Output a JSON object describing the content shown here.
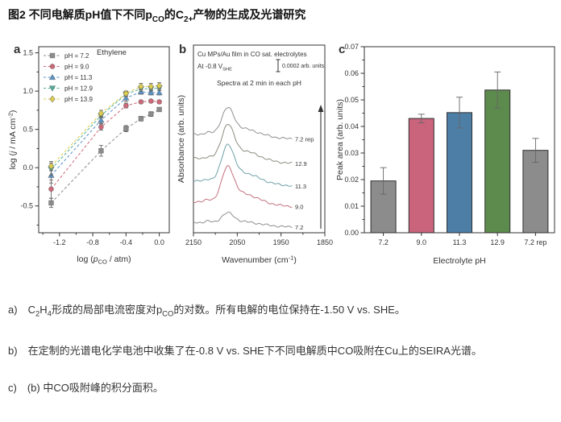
{
  "title": {
    "p1": "图2 不同电解质pH值下不同p",
    "s1": "CO",
    "p2": "的C",
    "s2": "2+",
    "p3": "产物的生成及光谱研究"
  },
  "captions": {
    "a": {
      "label": "a)",
      "p1": "C",
      "s1": "2",
      "p2": "H",
      "s2": "4",
      "p3": "形成的局部电流密度对p",
      "s3": "CO",
      "p4": "的对数。所有电解的电位保持在-1.50 V vs. SHE。"
    },
    "b": {
      "label": "b)",
      "text": "在定制的光谱电化学电池中收集了在-0.8 V vs. SHE下不同电解质中CO吸附在Cu上的SEIRA光谱。"
    },
    "c": {
      "label": "c)",
      "text": "(b) 中CO吸附峰的积分面积。"
    }
  },
  "chart_data": [
    {
      "panel": "a",
      "type": "line",
      "title": "Ethylene",
      "x": [
        -1.3,
        -0.7,
        -0.4,
        -0.22,
        -0.1,
        0.0
      ],
      "series": [
        {
          "name": "pH = 7.2",
          "color": "#8c8c8c",
          "marker": "square",
          "values": [
            -0.46,
            0.22,
            0.51,
            0.64,
            0.7,
            0.76
          ],
          "errors": [
            0.06,
            0.07,
            0.04,
            0.03,
            0.03,
            0.02
          ]
        },
        {
          "name": "pH = 9.0",
          "color": "#cd6878",
          "marker": "circle",
          "values": [
            -0.28,
            0.53,
            0.81,
            0.86,
            0.87,
            0.86
          ],
          "errors": [
            0.12,
            0.04,
            0.03,
            0.02,
            0.02,
            0.02
          ]
        },
        {
          "name": "pH = 11.3",
          "color": "#5b93c8",
          "marker": "triangle-up",
          "values": [
            -0.1,
            0.62,
            0.91,
            0.99,
            0.98,
            0.98
          ],
          "errors": [
            0.1,
            0.04,
            0.05,
            0.03,
            0.03,
            0.03
          ]
        },
        {
          "name": "pH = 12.9",
          "color": "#4fae9b",
          "marker": "triangle-down",
          "values": [
            -0.02,
            0.68,
            0.96,
            1.03,
            1.03,
            1.04
          ],
          "errors": [
            0.08,
            0.03,
            0.03,
            0.03,
            0.03,
            0.03
          ]
        },
        {
          "name": "pH = 13.9",
          "color": "#ddcc4e",
          "marker": "diamond",
          "values": [
            0.02,
            0.71,
            0.97,
            1.06,
            1.06,
            1.07
          ],
          "errors": [
            0.06,
            0.04,
            0.03,
            0.04,
            0.04,
            0.04
          ]
        }
      ],
      "xlim": [
        -1.45,
        0.12
      ],
      "ylim": [
        -0.85,
        1.58
      ],
      "xticks": [
        -1.2,
        -0.8,
        -0.4,
        0.0
      ],
      "xtick_labels": [
        "-1.2",
        "-0.8",
        "-0.4",
        "0.0"
      ],
      "xticks_minor": [
        -1.4,
        -1.0,
        -0.6,
        -0.2
      ],
      "yticks": [
        -0.5,
        0.0,
        0.5,
        1.0,
        1.5
      ],
      "ytick_labels": [
        "-0.5",
        "0.0",
        "0.5",
        "1.0",
        "1.5"
      ],
      "yticks_minor": [
        -0.75,
        -0.25,
        0.25,
        0.75,
        1.25
      ],
      "xlabel_segments": [
        {
          "t": "log ("
        },
        {
          "t": "p",
          "italic": true
        },
        {
          "t": "CO",
          "sub": true
        },
        {
          "t": " / atm)"
        }
      ],
      "ylabel_segments": [
        {
          "t": "log ("
        },
        {
          "t": "j",
          "italic": true
        },
        {
          "t": " / mA cm"
        },
        {
          "t": "-2",
          "sup": true
        },
        {
          "t": ")"
        }
      ],
      "legend_position": "top-left",
      "grid": false
    },
    {
      "panel": "b",
      "type": "line-spectra",
      "annotations": {
        "line1": "Cu MPs/Au film in CO sat. electrolytes",
        "line2_segments": [
          {
            "t": "At -0.8 V"
          },
          {
            "t": "SHE",
            "sub": true
          }
        ],
        "scalebar_label": "0.0002 arb. units",
        "line3": "Spectra at 2 min in each pH"
      },
      "xlim": [
        2150,
        1850
      ],
      "xticks": [
        2150,
        2050,
        1950,
        1850
      ],
      "xtick_labels": [
        "2150",
        "2050",
        "1950",
        "1850"
      ],
      "xticks_minor": [
        2100,
        2000,
        1900
      ],
      "xlabel_segments": [
        {
          "t": "Wavenumber (cm"
        },
        {
          "t": "-1",
          "sup": true
        },
        {
          "t": ")"
        }
      ],
      "ylabel_segments": [
        {
          "t": "Absorbance (arb. units)"
        }
      ],
      "peak_center": 2072,
      "curve_range": [
        2150,
        1925
      ],
      "spectra": [
        {
          "label": "7.2",
          "color": "#8f8f8f",
          "baseline": 0.97,
          "amplitude": 0.29
        },
        {
          "label": "9.0",
          "color": "#c4717f",
          "baseline": 0.86,
          "amplitude": 0.96
        },
        {
          "label": "11.3",
          "color": "#6fa0a8",
          "baseline": 0.75,
          "amplitude": 1.0
        },
        {
          "label": "12.9",
          "color": "#8d8d80",
          "baseline": 0.63,
          "amplitude": 0.94
        },
        {
          "label": "7.2 rep",
          "color": "#8f8f8f",
          "baseline": 0.5,
          "amplitude": 0.73
        }
      ],
      "arrow": "up-right-side",
      "grid": false
    },
    {
      "panel": "c",
      "type": "bar",
      "categories": [
        "7.2",
        "9.0",
        "11.3",
        "12.9",
        "7.2 rep"
      ],
      "values": [
        0.0195,
        0.043,
        0.0452,
        0.0537,
        0.031
      ],
      "errors": [
        0.005,
        0.0016,
        0.0058,
        0.0068,
        0.0045
      ],
      "colors": [
        "#8c8c8c",
        "#c9647c",
        "#4d7ea6",
        "#5d8a4d",
        "#8c8c8c"
      ],
      "ylim": [
        0,
        0.07
      ],
      "yticks": [
        0,
        0.01,
        0.02,
        0.03,
        0.04,
        0.05,
        0.06,
        0.07
      ],
      "ytick_labels": [
        "0.00",
        "0.01",
        "0.02",
        "0.03",
        "0.04",
        "0.05",
        "0.06",
        "0.07"
      ],
      "yticks_minor": [
        0.005,
        0.015,
        0.025,
        0.035,
        0.045,
        0.055,
        0.065
      ],
      "ylabel_segments": [
        {
          "t": "Peak area (arb. units)"
        }
      ],
      "xlabel_segments": [
        {
          "t": "Electrolyte pH"
        }
      ],
      "grid": false
    }
  ]
}
